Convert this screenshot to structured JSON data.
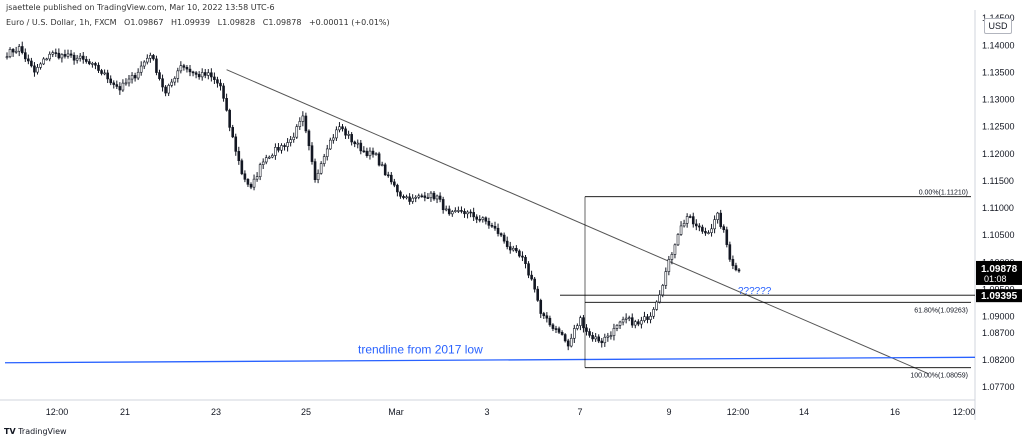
{
  "header": {
    "published_by": "jsaettele published on TradingView.com, Mar 10, 2022 13:58 UTC-6",
    "instrument": "Euro / U.S. Dollar, 1h, FXCM",
    "open": "O1.09867",
    "high": "H1.09939",
    "low": "L1.09828",
    "close": "C1.09878",
    "change": "+0.00011 (+0.01%)"
  },
  "currency": "USD",
  "footer": {
    "logo": "TV",
    "brand": "TradingView"
  },
  "colors": {
    "candle": "#131722",
    "trendline": "#555555",
    "blue": "#2962ff",
    "fib": "#000000",
    "price_label_bg": "#000000",
    "price_label_text": "#ffffff"
  },
  "chart_data": {
    "type": "candlestick",
    "timeframe": "1h",
    "ylim": [
      1.075,
      1.1465
    ],
    "y_ticks": [
      {
        "value": 1.145,
        "label": "1.14500"
      },
      {
        "value": 1.14,
        "label": "1.14000"
      },
      {
        "value": 1.135,
        "label": "1.13500"
      },
      {
        "value": 1.13,
        "label": "1.13000"
      },
      {
        "value": 1.125,
        "label": "1.12500"
      },
      {
        "value": 1.12,
        "label": "1.12000"
      },
      {
        "value": 1.115,
        "label": "1.11500"
      },
      {
        "value": 1.11,
        "label": "1.11000"
      },
      {
        "value": 1.105,
        "label": "1.10500"
      },
      {
        "value": 1.1,
        "label": "1.10000"
      },
      {
        "value": 1.095,
        "label": "1.09500"
      },
      {
        "value": 1.09,
        "label": "1.09000"
      },
      {
        "value": 1.087,
        "label": "1.08700"
      },
      {
        "value": 1.082,
        "label": "1.08200"
      },
      {
        "value": 1.077,
        "label": "1.07700"
      }
    ],
    "x_ticks": [
      "12:00",
      "21",
      "23",
      "25",
      "Mar",
      "3",
      "7",
      "9",
      "12:00",
      "14",
      "16",
      "12:00"
    ],
    "price_path": [
      [
        0,
        1.1385
      ],
      [
        4,
        1.1395
      ],
      [
        9,
        1.135
      ],
      [
        14,
        1.1385
      ],
      [
        19,
        1.138
      ],
      [
        24,
        1.1375
      ],
      [
        30,
        1.1355
      ],
      [
        37,
        1.132
      ],
      [
        42,
        1.1345
      ],
      [
        47,
        1.1385
      ],
      [
        52,
        1.131
      ],
      [
        57,
        1.1365
      ],
      [
        62,
        1.1345
      ],
      [
        66,
        1.1345
      ],
      [
        70,
        1.1325
      ],
      [
        73,
        1.125
      ],
      [
        77,
        1.1165
      ],
      [
        80,
        1.1135
      ],
      [
        84,
        1.119
      ],
      [
        89,
        1.121
      ],
      [
        93,
        1.1225
      ],
      [
        97,
        1.1265
      ],
      [
        101,
        1.1155
      ],
      [
        105,
        1.1215
      ],
      [
        109,
        1.125
      ],
      [
        113,
        1.1225
      ],
      [
        117,
        1.1205
      ],
      [
        121,
        1.1195
      ],
      [
        125,
        1.1155
      ],
      [
        129,
        1.1125
      ],
      [
        133,
        1.1115
      ],
      [
        137,
        1.1125
      ],
      [
        141,
        1.112
      ],
      [
        145,
        1.1085
      ],
      [
        149,
        1.1095
      ],
      [
        153,
        1.1085
      ],
      [
        157,
        1.1075
      ],
      [
        161,
        1.1055
      ],
      [
        165,
        1.1025
      ],
      [
        169,
        1.1005
      ],
      [
        173,
        1.0955
      ],
      [
        175,
        1.0905
      ],
      [
        178,
        1.0885
      ],
      [
        181,
        1.0875
      ],
      [
        184,
        1.0845
      ],
      [
        186,
        1.0875
      ],
      [
        188,
        1.0895
      ],
      [
        191,
        1.0865
      ],
      [
        195,
        1.0855
      ],
      [
        199,
        1.0875
      ],
      [
        203,
        1.0895
      ],
      [
        207,
        1.0885
      ],
      [
        211,
        1.0905
      ],
      [
        214,
        1.0945
      ],
      [
        217,
        1.1
      ],
      [
        220,
        1.1055
      ],
      [
        223,
        1.1085
      ],
      [
        226,
        1.1065
      ],
      [
        229,
        1.1055
      ],
      [
        231,
        1.1065
      ],
      [
        233,
        1.1085
      ],
      [
        235,
        1.1055
      ],
      [
        237,
        1.101
      ],
      [
        239,
        1.0985
      ],
      [
        240,
        1.0988
      ]
    ],
    "last_price": {
      "value": 1.09878,
      "label": "1.09878",
      "countdown": "01:08"
    },
    "level_label": {
      "value": 1.09395,
      "label": "1.09395"
    },
    "fib_levels": [
      {
        "value": 1.1121,
        "label": "0.00%(1.11210)"
      },
      {
        "value": 1.09263,
        "label": "61.80%(1.09263)"
      },
      {
        "value": 1.08059,
        "label": "100.00%(1.08059)"
      }
    ],
    "trendline": {
      "from": [
        72,
        1.1355
      ],
      "to": [
        302,
        1.0795
      ]
    },
    "trendline_2017": {
      "label": "trendline from 2017 low",
      "from": [
        0,
        1.0815
      ],
      "to": [
        302,
        1.0825
      ]
    },
    "annotation": "??????"
  }
}
